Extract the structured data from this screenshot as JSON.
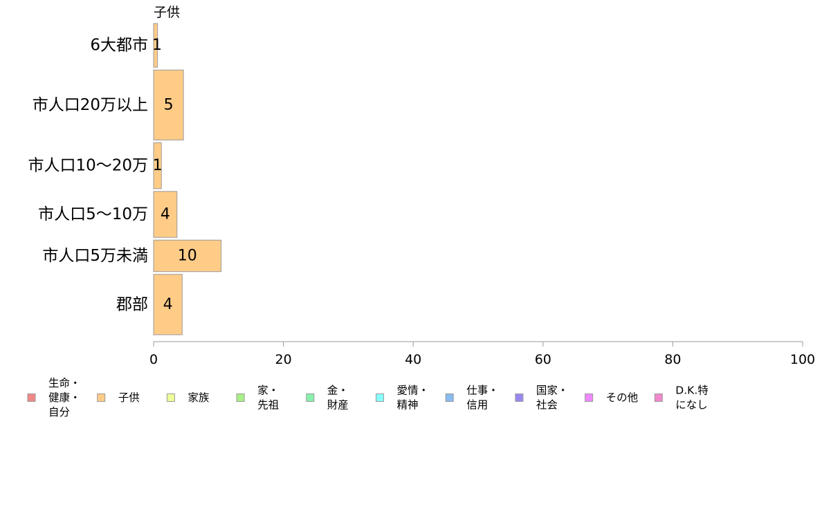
{
  "chart_data": {
    "type": "bar",
    "orientation": "horizontal",
    "series_title": "子供",
    "categories": [
      "6大都市",
      "市人口20万以上",
      "市人口10〜20万",
      "市人口5〜10万",
      "市人口5万未満",
      "郡部"
    ],
    "values": [
      1,
      5,
      1,
      4,
      10,
      4
    ],
    "bar_widths": [
      0.6,
      4.6,
      1.2,
      3.6,
      10.4,
      4.4
    ],
    "bar_heights": [
      1,
      1.6,
      1.05,
      1.05,
      0.72,
      1.38
    ],
    "series_color": "#ffcc88",
    "xlim": [
      0,
      100
    ],
    "xticks": [
      0,
      20,
      40,
      60,
      80,
      100
    ],
    "grid": false,
    "legend_position": "bottom",
    "legend": [
      {
        "lines": [
          "生命・",
          "健康・",
          "自分"
        ],
        "color": "#f08888"
      },
      {
        "lines": [
          "子供"
        ],
        "color": "#ffcc88"
      },
      {
        "lines": [
          "家族"
        ],
        "color": "#eeff99"
      },
      {
        "lines": [
          "家・",
          "先祖"
        ],
        "color": "#aaf088"
      },
      {
        "lines": [
          "金・",
          "財産"
        ],
        "color": "#88f0aa"
      },
      {
        "lines": [
          "愛情・",
          "精神"
        ],
        "color": "#88ffff"
      },
      {
        "lines": [
          "仕事・",
          "信用"
        ],
        "color": "#88bbf0"
      },
      {
        "lines": [
          "国家・",
          "社会"
        ],
        "color": "#9988f0"
      },
      {
        "lines": [
          "その他"
        ],
        "color": "#ee88ff"
      },
      {
        "lines": [
          "D.K.特",
          "になし"
        ],
        "color": "#f088cc"
      }
    ]
  }
}
